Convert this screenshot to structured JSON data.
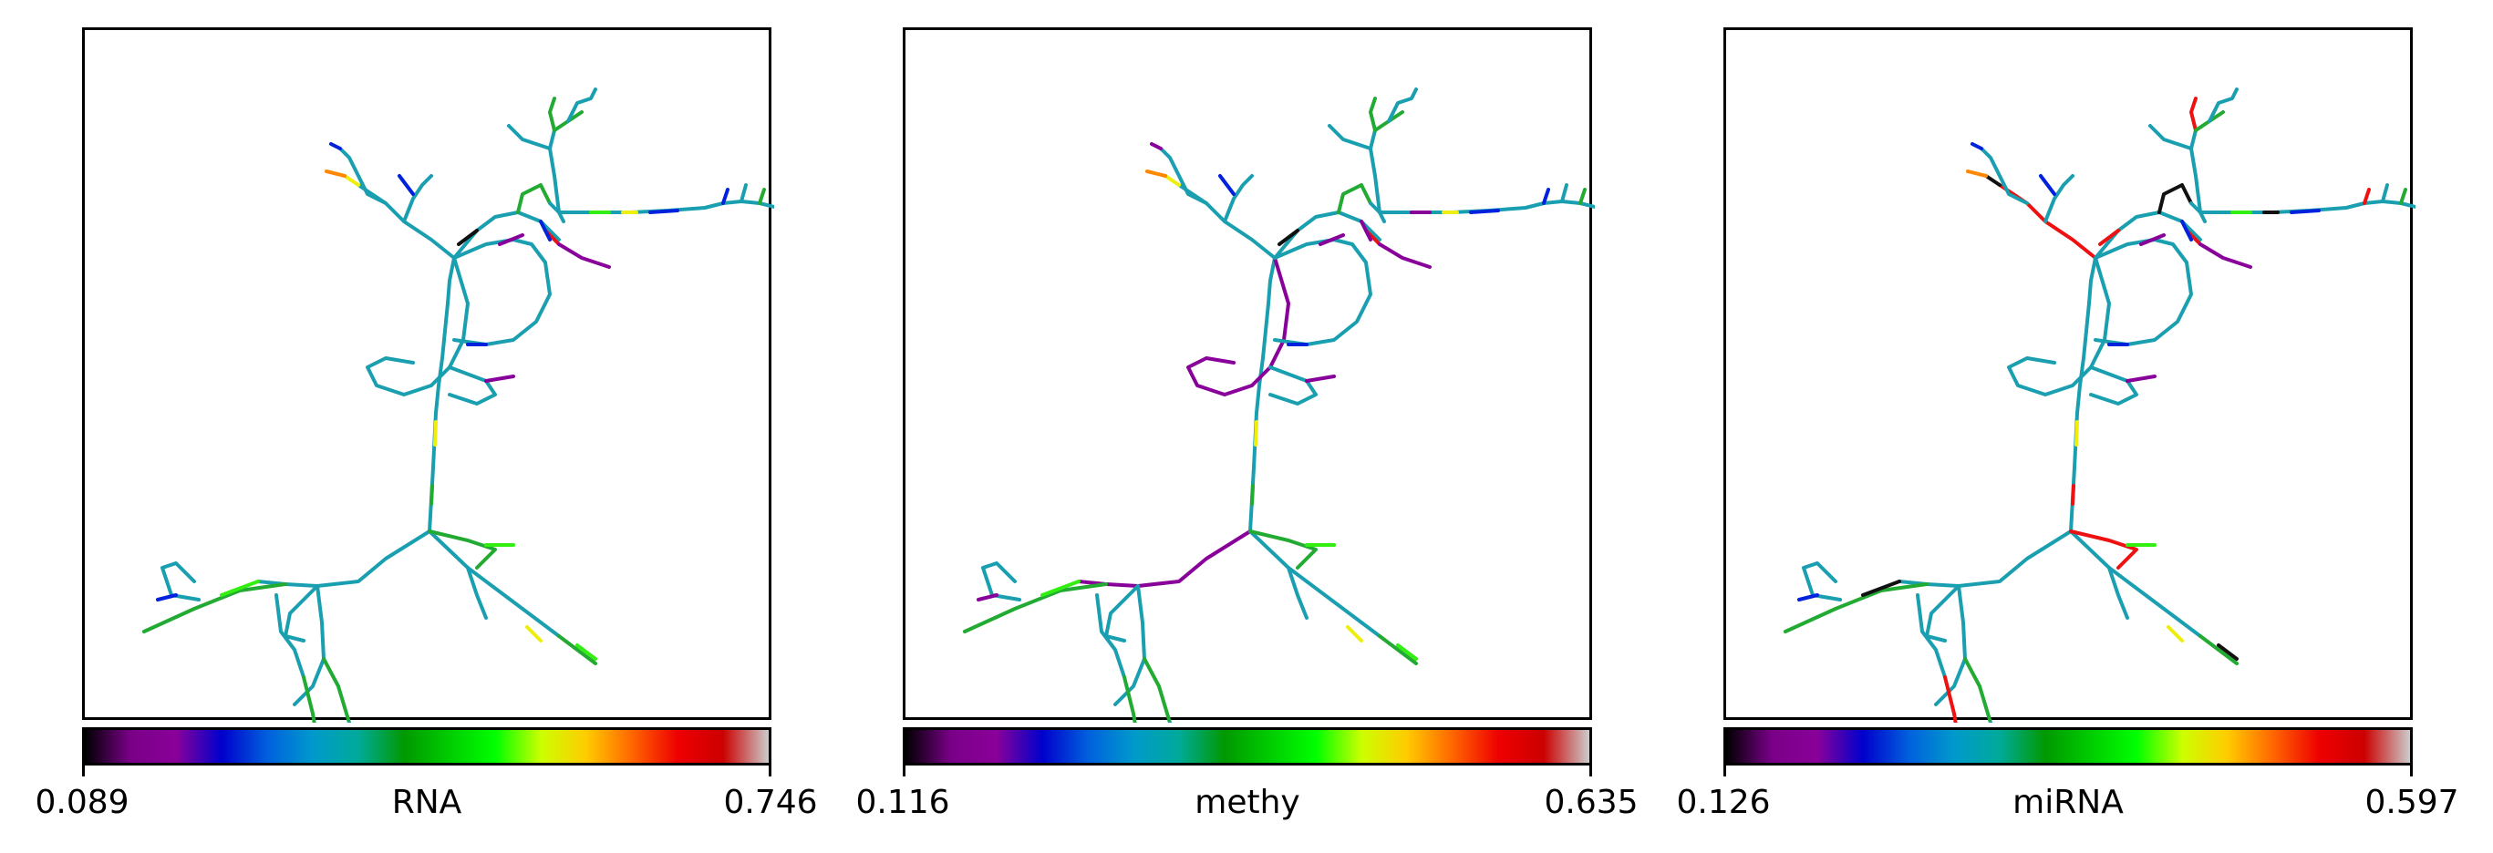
{
  "colormap": {
    "name": "nipy_spectral",
    "stops": [
      "#000000",
      "#7a0088",
      "#8a0099",
      "#0000cc",
      "#0060dd",
      "#0099cc",
      "#00aa99",
      "#009900",
      "#00cc00",
      "#00ff00",
      "#ccff00",
      "#ffcc00",
      "#ff6600",
      "#ee0000",
      "#cc0000",
      "#cccccc"
    ]
  },
  "chart_data": [
    {
      "type": "network-tree",
      "colorbar_label": "RNA",
      "colorbar_min": "0.089",
      "colorbar_max": "0.746",
      "edge_color_key": [
        "blue",
        "green",
        "lime",
        "teal",
        "purple",
        "red",
        "yellow",
        "black",
        "orange"
      ]
    },
    {
      "type": "network-tree",
      "colorbar_label": "methy",
      "colorbar_min": "0.116",
      "colorbar_max": "0.635"
    },
    {
      "type": "network-tree",
      "colorbar_label": "miRNA",
      "colorbar_min": "0.126",
      "colorbar_max": "0.597"
    }
  ]
}
